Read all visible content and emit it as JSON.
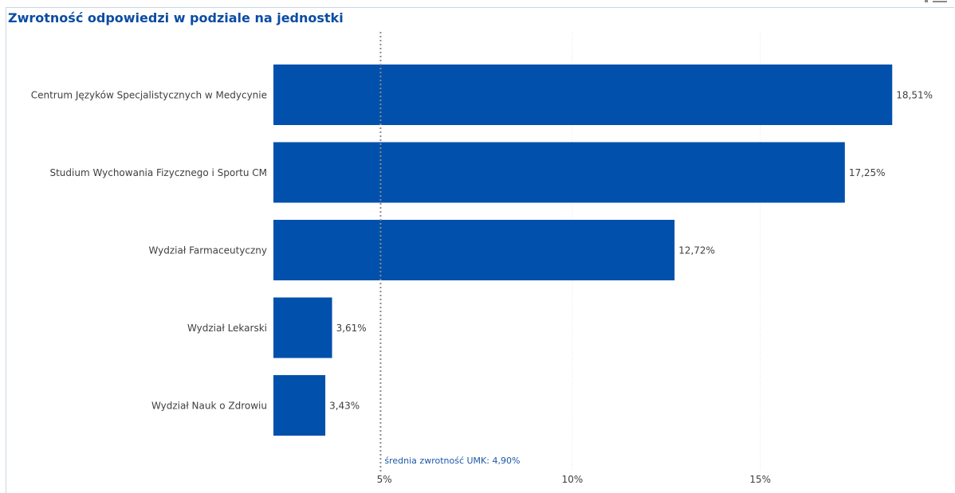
{
  "chart_data": {
    "type": "bar",
    "orientation": "horizontal",
    "title": "Zwrotność odpowiedzi w podziale na jednostki",
    "categories": [
      "Centrum Języków Specjalistycznych w Medycynie",
      "Studium Wychowania Fizycznego i Sportu CM",
      "Wydział Farmaceutyczny",
      "Wydział Lekarski",
      "Wydział Nauk o Zdrowiu"
    ],
    "values": [
      18.51,
      17.25,
      12.72,
      3.61,
      3.43
    ],
    "value_labels": [
      "18,51%",
      "17,25%",
      "12,72%",
      "3,61%",
      "3,43%"
    ],
    "xlim": [
      2.05,
      18.95
    ],
    "xticks": [
      {
        "value": 5,
        "label": "5%"
      },
      {
        "value": 10,
        "label": "10%"
      },
      {
        "value": 15,
        "label": "15%"
      }
    ],
    "reference_line": {
      "value": 4.9,
      "label": "średnia zwrotność UMK: 4,90%",
      "style": "dotted"
    },
    "grid": true,
    "colors": {
      "bar": "#0050ac",
      "title": "#0a4ca3",
      "reference_label": "#1d57a7",
      "reference_line": "#8c8c8c",
      "grid": "#dde8f2",
      "text": "#404040"
    }
  }
}
